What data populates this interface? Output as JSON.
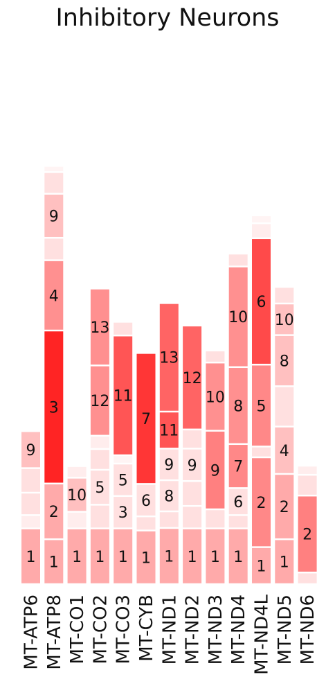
{
  "chart_data": {
    "type": "bar",
    "stacked": true,
    "title": "Inhibitory Neurons",
    "xlabel": "",
    "ylabel": "",
    "grid": false,
    "value_unit": "relative height",
    "ylim": [
      0,
      100
    ],
    "colors": {
      "c1": "#FFAAAA",
      "c2": "#FF8080",
      "c3": "#FF2424",
      "c4": "#FF9090",
      "c5": "#FF8888",
      "c6": "#FF4A4A",
      "c7": "#FF3636",
      "c8": "#FFC0C0",
      "c9": "#FFC0C0",
      "c10": "#FFC0C0",
      "c11": "#FF5555",
      "c12": "#FF6464",
      "c13": "#FF6666",
      "faint": "#FFE0E0",
      "faint2": "#FFEDED",
      "faint3": "#FFF4F4"
    },
    "categories": [
      "MT-ATP6",
      "MT-ATP8",
      "MT-CO1",
      "MT-CO2",
      "MT-CO3",
      "MT-CYB",
      "MT-ND1",
      "MT-ND2",
      "MT-ND3",
      "MT-ND4",
      "MT-ND4L",
      "MT-ND5",
      "MT-ND6"
    ],
    "bars": [
      {
        "category": "MT-ATP6",
        "segments": [
          {
            "label": "1",
            "value": 13.4,
            "color": "c1"
          },
          {
            "label": "",
            "value": 3.2,
            "color": "faint2"
          },
          {
            "label": "",
            "value": 5.4,
            "color": "faint"
          },
          {
            "label": "",
            "value": 5.9,
            "color": "faint"
          },
          {
            "label": "9",
            "value": 8.9,
            "color": "c9"
          }
        ]
      },
      {
        "category": "MT-ATP8",
        "segments": [
          {
            "label": "1",
            "value": 10.8,
            "color": "c1"
          },
          {
            "label": "2",
            "value": 13.4,
            "color": "c1"
          },
          {
            "label": "3",
            "value": 36.8,
            "color": "c3"
          },
          {
            "label": "4",
            "value": 16.9,
            "color": "c4"
          },
          {
            "label": "",
            "value": 5.4,
            "color": "faint"
          },
          {
            "label": "9",
            "value": 10.6,
            "color": "c9"
          },
          {
            "label": "",
            "value": 5.2,
            "color": "faint"
          },
          {
            "label": "",
            "value": 1.5,
            "color": "faint3"
          }
        ]
      },
      {
        "category": "MT-CO1",
        "segments": [
          {
            "label": "1",
            "value": 13.4,
            "color": "c1"
          },
          {
            "label": "",
            "value": 4.0,
            "color": "faint2"
          },
          {
            "label": "10",
            "value": 8.2,
            "color": "c10"
          },
          {
            "label": "",
            "value": 2.8,
            "color": "faint2"
          }
        ]
      },
      {
        "category": "MT-CO2",
        "segments": [
          {
            "label": "1",
            "value": 13.4,
            "color": "c1"
          },
          {
            "label": "",
            "value": 5.7,
            "color": "faint"
          },
          {
            "label": "5",
            "value": 8.4,
            "color": "faint"
          },
          {
            "label": "",
            "value": 5.0,
            "color": "faint"
          },
          {
            "label": "",
            "value": 3.2,
            "color": "faint2"
          },
          {
            "label": "12",
            "value": 16.9,
            "color": "c4"
          },
          {
            "label": "13",
            "value": 18.5,
            "color": "c4"
          }
        ]
      },
      {
        "category": "MT-CO3",
        "segments": [
          {
            "label": "1",
            "value": 13.4,
            "color": "c1"
          },
          {
            "label": "3",
            "value": 7.8,
            "color": "faint"
          },
          {
            "label": "5",
            "value": 7.8,
            "color": "faint"
          },
          {
            "label": "",
            "value": 2.0,
            "color": "faint3"
          },
          {
            "label": "11",
            "value": 28.8,
            "color": "c11"
          },
          {
            "label": "",
            "value": 3.3,
            "color": "faint"
          }
        ]
      },
      {
        "category": "MT-CYB",
        "segments": [
          {
            "label": "1",
            "value": 12.9,
            "color": "c1"
          },
          {
            "label": "",
            "value": 3.4,
            "color": "faint"
          },
          {
            "label": "6",
            "value": 7.8,
            "color": "faint"
          },
          {
            "label": "7",
            "value": 31.5,
            "color": "c7"
          }
        ]
      },
      {
        "category": "MT-ND1",
        "segments": [
          {
            "label": "1",
            "value": 13.5,
            "color": "c1"
          },
          {
            "label": "",
            "value": 4.0,
            "color": "faint"
          },
          {
            "label": "8",
            "value": 7.5,
            "color": "faint"
          },
          {
            "label": "9",
            "value": 7.6,
            "color": "faint"
          },
          {
            "label": "11",
            "value": 8.9,
            "color": "c11"
          },
          {
            "label": "13",
            "value": 26.1,
            "color": "c12"
          }
        ]
      },
      {
        "category": "MT-ND2",
        "segments": [
          {
            "label": "1",
            "value": 13.4,
            "color": "c1"
          },
          {
            "label": "",
            "value": 5.4,
            "color": "faint"
          },
          {
            "label": "",
            "value": 6.0,
            "color": "faint"
          },
          {
            "label": "9",
            "value": 7.8,
            "color": "faint"
          },
          {
            "label": "",
            "value": 4.6,
            "color": "faint"
          },
          {
            "label": "12",
            "value": 25.0,
            "color": "c12"
          }
        ]
      },
      {
        "category": "MT-ND3",
        "segments": [
          {
            "label": "1",
            "value": 13.4,
            "color": "c1"
          },
          {
            "label": "",
            "value": 4.6,
            "color": "faint"
          },
          {
            "label": "9",
            "value": 18.9,
            "color": "c2"
          },
          {
            "label": "10",
            "value": 16.4,
            "color": "c4"
          },
          {
            "label": "",
            "value": 2.9,
            "color": "faint"
          }
        ]
      },
      {
        "category": "MT-ND4",
        "segments": [
          {
            "label": "1",
            "value": 13.4,
            "color": "c1"
          },
          {
            "label": "",
            "value": 3.2,
            "color": "faint"
          },
          {
            "label": "6",
            "value": 6.5,
            "color": "faint"
          },
          {
            "label": "7",
            "value": 10.6,
            "color": "c5"
          },
          {
            "label": "8",
            "value": 18.5,
            "color": "c4"
          },
          {
            "label": "10",
            "value": 24.2,
            "color": "c4"
          },
          {
            "label": "",
            "value": 3.1,
            "color": "faint"
          }
        ]
      },
      {
        "category": "MT-ND4L",
        "segments": [
          {
            "label": "1",
            "value": 8.9,
            "color": "c1"
          },
          {
            "label": "2",
            "value": 21.6,
            "color": "c5"
          },
          {
            "label": "",
            "value": 2.6,
            "color": "faint"
          },
          {
            "label": "5",
            "value": 19.7,
            "color": "c5"
          },
          {
            "label": "6",
            "value": 30.4,
            "color": "c6"
          },
          {
            "label": "",
            "value": 3.6,
            "color": "faint2"
          },
          {
            "label": "",
            "value": 1.9,
            "color": "faint3"
          }
        ]
      },
      {
        "category": "MT-ND5",
        "segments": [
          {
            "label": "1",
            "value": 10.8,
            "color": "c1"
          },
          {
            "label": "2",
            "value": 15.7,
            "color": "c1"
          },
          {
            "label": "4",
            "value": 11.4,
            "color": "c8"
          },
          {
            "label": "",
            "value": 9.7,
            "color": "faint"
          },
          {
            "label": "8",
            "value": 12.3,
            "color": "c8"
          },
          {
            "label": "10",
            "value": 7.6,
            "color": "c10"
          },
          {
            "label": "",
            "value": 4.0,
            "color": "faint"
          }
        ]
      },
      {
        "category": "MT-ND6",
        "segments": [
          {
            "label": "",
            "value": 2.8,
            "color": "faint"
          },
          {
            "label": "2",
            "value": 18.5,
            "color": "c2"
          },
          {
            "label": "",
            "value": 5.0,
            "color": "faint"
          },
          {
            "label": "",
            "value": 2.2,
            "color": "faint2"
          }
        ]
      }
    ]
  }
}
